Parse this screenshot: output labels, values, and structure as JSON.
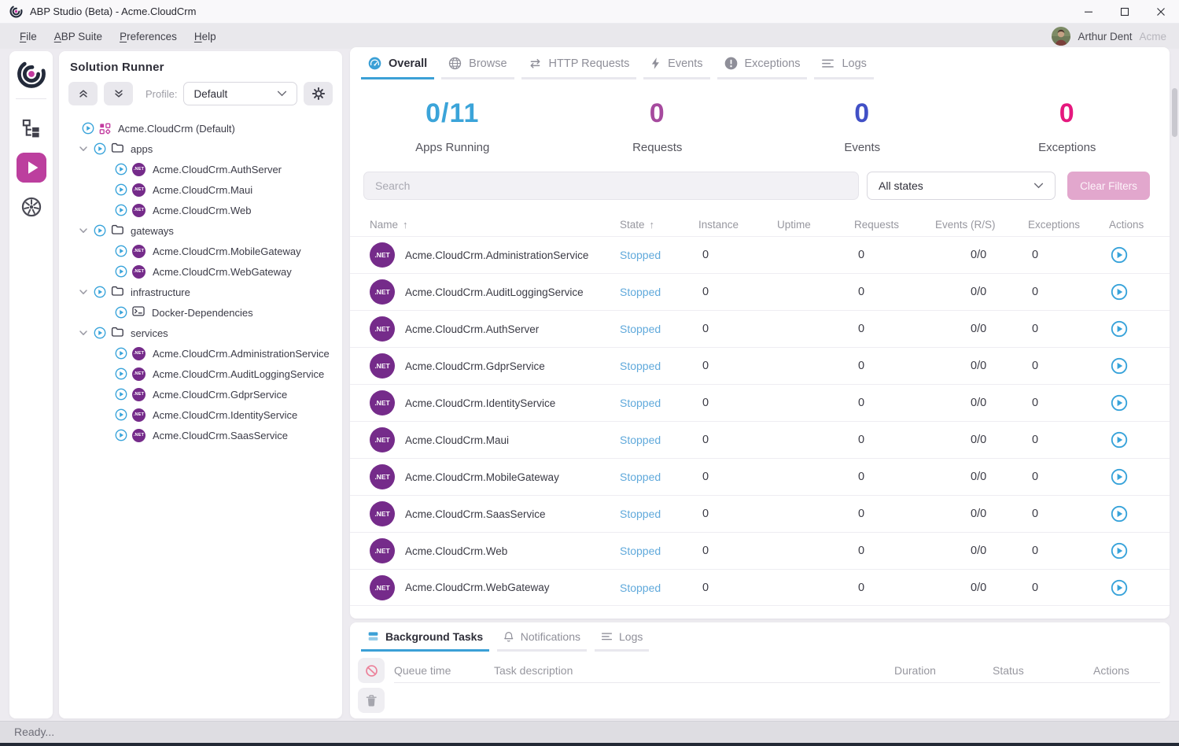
{
  "window": {
    "title": "ABP Studio (Beta) - Acme.CloudCrm",
    "status_text": "Ready...",
    "controls": [
      "minimize",
      "maximize",
      "close"
    ]
  },
  "menu": {
    "items": [
      "File",
      "ABP Suite",
      "Preferences",
      "Help"
    ],
    "user_name": "Arthur Dent",
    "tenant": "Acme"
  },
  "activity_bar": {
    "items": [
      {
        "icon": "solution-explorer",
        "active": false
      },
      {
        "icon": "solution-runner",
        "active": true
      },
      {
        "icon": "kubernetes",
        "active": false
      }
    ]
  },
  "solution_runner": {
    "title": "Solution Runner",
    "profile_label": "Profile:",
    "profile_value": "Default",
    "tree": [
      {
        "type": "solution",
        "label": "Acme.CloudCrm (Default)"
      },
      {
        "type": "folder",
        "label": "apps"
      },
      {
        "type": "app",
        "label": "Acme.CloudCrm.AuthServer"
      },
      {
        "type": "app",
        "label": "Acme.CloudCrm.Maui"
      },
      {
        "type": "app",
        "label": "Acme.CloudCrm.Web"
      },
      {
        "type": "folder",
        "label": "gateways"
      },
      {
        "type": "app",
        "label": "Acme.CloudCrm.MobileGateway"
      },
      {
        "type": "app",
        "label": "Acme.CloudCrm.WebGateway"
      },
      {
        "type": "folder",
        "label": "infrastructure"
      },
      {
        "type": "docker",
        "label": "Docker-Dependencies"
      },
      {
        "type": "folder",
        "label": "services"
      },
      {
        "type": "app",
        "label": "Acme.CloudCrm.AdministrationService"
      },
      {
        "type": "app",
        "label": "Acme.CloudCrm.AuditLoggingService"
      },
      {
        "type": "app",
        "label": "Acme.CloudCrm.GdprService"
      },
      {
        "type": "app",
        "label": "Acme.CloudCrm.IdentityService"
      },
      {
        "type": "app",
        "label": "Acme.CloudCrm.SaasService"
      }
    ]
  },
  "main": {
    "tabs": [
      {
        "label": "Overall",
        "icon": "gauge",
        "active": true
      },
      {
        "label": "Browse",
        "icon": "globe",
        "active": false
      },
      {
        "label": "HTTP Requests",
        "icon": "swap",
        "active": false
      },
      {
        "label": "Events",
        "icon": "bolt",
        "active": false
      },
      {
        "label": "Exceptions",
        "icon": "alert",
        "active": false
      },
      {
        "label": "Logs",
        "icon": "lines",
        "active": false
      }
    ],
    "stats": [
      {
        "value": "0/11",
        "label": "Apps Running",
        "color": "#3ba4d9"
      },
      {
        "value": "0",
        "label": "Requests",
        "color": "#a64a9e"
      },
      {
        "value": "0",
        "label": "Events",
        "color": "#4150c6"
      },
      {
        "value": "0",
        "label": "Exceptions",
        "color": "#e5187e"
      }
    ],
    "search_placeholder": "Search",
    "state_filter_value": "All states",
    "clear_filters_label": "Clear Filters",
    "table": {
      "columns": [
        "Name",
        "State",
        "Instance",
        "Uptime",
        "Requests",
        "Events (R/S)",
        "Exceptions",
        "Actions"
      ],
      "sorted_columns": [
        "Name",
        "State"
      ],
      "rows": [
        {
          "name": "Acme.CloudCrm.AdministrationService",
          "state": "Stopped",
          "instance": "0",
          "uptime": "",
          "requests": "0",
          "events": "0/0",
          "exceptions": "0"
        },
        {
          "name": "Acme.CloudCrm.AuditLoggingService",
          "state": "Stopped",
          "instance": "0",
          "uptime": "",
          "requests": "0",
          "events": "0/0",
          "exceptions": "0"
        },
        {
          "name": "Acme.CloudCrm.AuthServer",
          "state": "Stopped",
          "instance": "0",
          "uptime": "",
          "requests": "0",
          "events": "0/0",
          "exceptions": "0"
        },
        {
          "name": "Acme.CloudCrm.GdprService",
          "state": "Stopped",
          "instance": "0",
          "uptime": "",
          "requests": "0",
          "events": "0/0",
          "exceptions": "0"
        },
        {
          "name": "Acme.CloudCrm.IdentityService",
          "state": "Stopped",
          "instance": "0",
          "uptime": "",
          "requests": "0",
          "events": "0/0",
          "exceptions": "0"
        },
        {
          "name": "Acme.CloudCrm.Maui",
          "state": "Stopped",
          "instance": "0",
          "uptime": "",
          "requests": "0",
          "events": "0/0",
          "exceptions": "0"
        },
        {
          "name": "Acme.CloudCrm.MobileGateway",
          "state": "Stopped",
          "instance": "0",
          "uptime": "",
          "requests": "0",
          "events": "0/0",
          "exceptions": "0"
        },
        {
          "name": "Acme.CloudCrm.SaasService",
          "state": "Stopped",
          "instance": "0",
          "uptime": "",
          "requests": "0",
          "events": "0/0",
          "exceptions": "0"
        },
        {
          "name": "Acme.CloudCrm.Web",
          "state": "Stopped",
          "instance": "0",
          "uptime": "",
          "requests": "0",
          "events": "0/0",
          "exceptions": "0"
        },
        {
          "name": "Acme.CloudCrm.WebGateway",
          "state": "Stopped",
          "instance": "0",
          "uptime": "",
          "requests": "0",
          "events": "0/0",
          "exceptions": "0"
        }
      ]
    }
  },
  "bottom_panel": {
    "tabs": [
      {
        "label": "Background Tasks",
        "icon": "layers",
        "active": true
      },
      {
        "label": "Notifications",
        "icon": "bell",
        "active": false
      },
      {
        "label": "Logs",
        "icon": "lines",
        "active": false
      }
    ],
    "columns": [
      "Queue time",
      "Task description",
      "Duration",
      "Status",
      "Actions"
    ],
    "actions": [
      "cancel",
      "trash"
    ]
  },
  "colors": {
    "brand_magenta": "#bc3f9e",
    "accent_blue": "#3ba0d6",
    "dotnet_purple": "#752b8a",
    "stopped_state": "#60a9db"
  }
}
